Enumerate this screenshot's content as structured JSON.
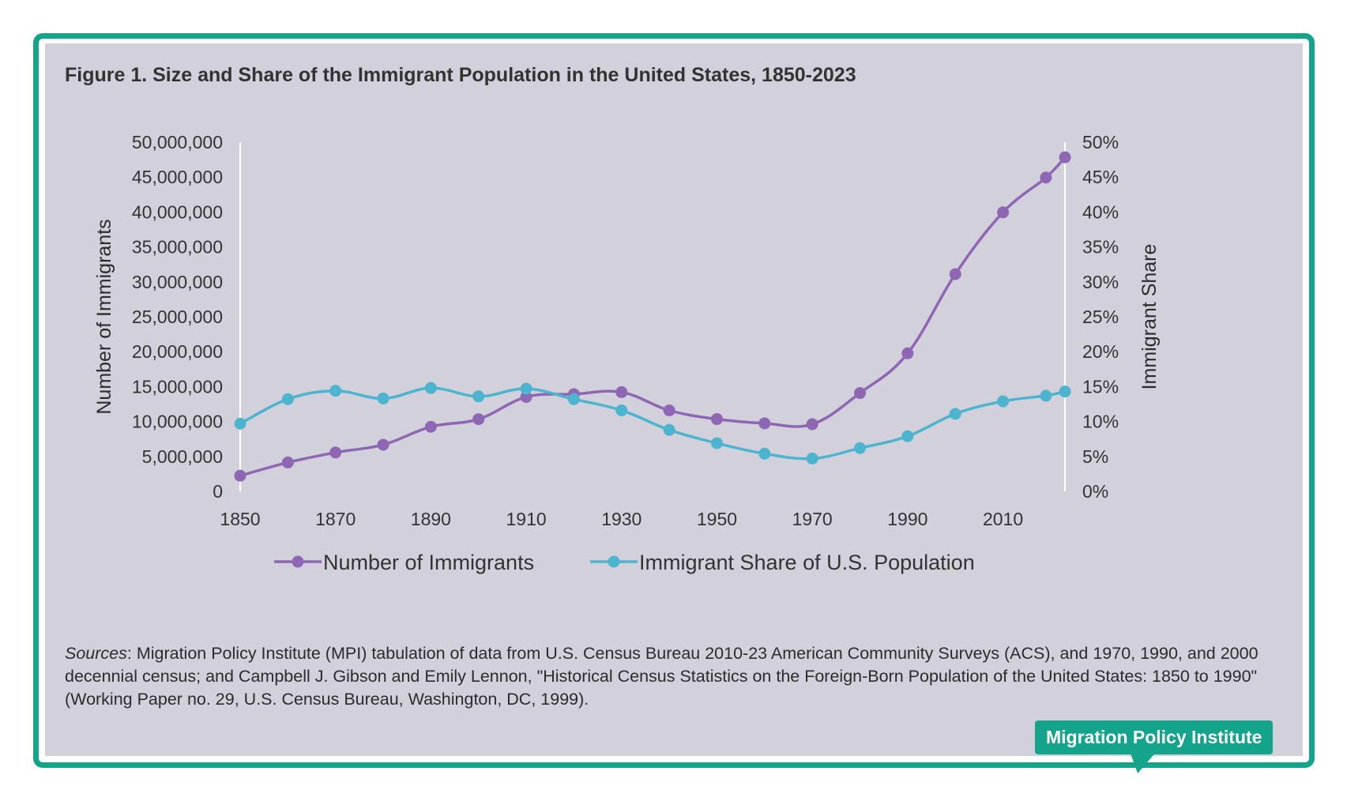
{
  "figure": {
    "title": "Figure 1. Size and Share of the Immigrant Population in the United States, 1850-2023",
    "sources_lead": "Sources",
    "sources_text": ": Migration Policy Institute (MPI) tabulation of data from U.S. Census Bureau 2010-23 American Community Surveys (ACS), and 1970, 1990, and 2000 decennial census; and Campbell J. Gibson and Emily Lennon, \"Historical Census Statistics on the Foreign-Born Population of the United States: 1850 to 1990\" (Working Paper no. 29, U.S. Census Bureau, Washington, DC, 1999).",
    "badge": "Migration Policy Institute"
  },
  "colors": {
    "frame": "#14a38b",
    "panel": "#d2d0db",
    "number_series": "#8e67b4",
    "share_series": "#4cb4cf"
  },
  "chart_data": {
    "type": "line",
    "title": "Figure 1. Size and Share of the Immigrant Population in the United States, 1850-2023",
    "ylabel": "Number of Immigrants",
    "y2label": "Immigrant Share",
    "ylim": [
      0,
      50000000
    ],
    "y2lim": [
      0,
      50
    ],
    "xlim": [
      1850,
      2023
    ],
    "x_ticks": [
      "1850",
      "1870",
      "1890",
      "1910",
      "1930",
      "1950",
      "1970",
      "1990",
      "2010"
    ],
    "y_ticks": [
      "0",
      "5,000,000",
      "10,000,000",
      "15,000,000",
      "20,000,000",
      "25,000,000",
      "30,000,000",
      "35,000,000",
      "40,000,000",
      "45,000,000",
      "50,000,000"
    ],
    "y2_ticks": [
      "0%",
      "5%",
      "10%",
      "15%",
      "20%",
      "25%",
      "30%",
      "35%",
      "40%",
      "45%",
      "50%"
    ],
    "grid": false,
    "legend_position": "bottom",
    "series": [
      {
        "name": "Number of Immigrants",
        "axis": "left",
        "x": [
          1850,
          1860,
          1870,
          1880,
          1890,
          1900,
          1910,
          1920,
          1930,
          1940,
          1950,
          1960,
          1970,
          1980,
          1990,
          2000,
          2010,
          2019,
          2023
        ],
        "values": [
          2244602,
          4138697,
          5567229,
          6679943,
          9249547,
          10341276,
          13515886,
          13920692,
          14204149,
          11594896,
          10347395,
          9738091,
          9619302,
          14079906,
          19767316,
          31107889,
          39955854,
          44932799,
          47831000
        ]
      },
      {
        "name": "Immigrant Share of U.S. Population",
        "axis": "right",
        "x": [
          1850,
          1860,
          1870,
          1880,
          1890,
          1900,
          1910,
          1920,
          1930,
          1940,
          1950,
          1960,
          1970,
          1980,
          1990,
          2000,
          2010,
          2019,
          2023
        ],
        "values": [
          9.7,
          13.2,
          14.4,
          13.3,
          14.8,
          13.6,
          14.7,
          13.2,
          11.6,
          8.8,
          6.9,
          5.4,
          4.7,
          6.2,
          7.9,
          11.1,
          12.9,
          13.7,
          14.3
        ]
      }
    ]
  }
}
